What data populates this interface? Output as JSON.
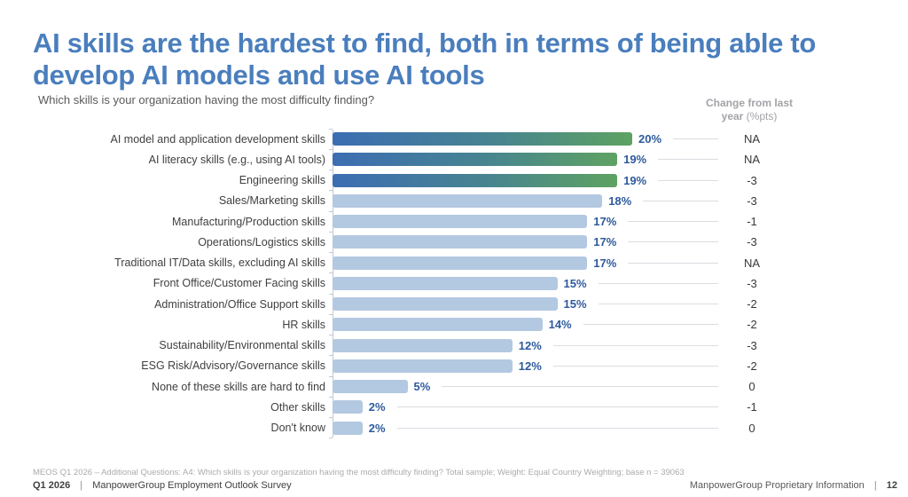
{
  "slide": {
    "title": "AI skills are the hardest to find, both in terms of being able to develop AI models and use AI tools",
    "subtitle": "Which skills is your organization having the most difficulty finding?",
    "change_header": {
      "line1": "Change from last",
      "line2_bold": "year",
      "line2_rest": " (%pts)"
    },
    "footnote": "MEOS Q1 2026 – Additional Questions: A4: Which skills is your organization having the most difficulty finding? Total sample; Weight: Equal Country Weighting; base n = 39063",
    "footer_left": {
      "period": "Q1 2026",
      "separator": "|",
      "text": "ManpowerGroup Employment Outlook Survey"
    },
    "footer_right": {
      "text": "ManpowerGroup Proprietary Information",
      "separator": "|",
      "page_number": "12"
    }
  },
  "chart_data": {
    "type": "bar",
    "orientation": "horizontal",
    "title": "Which skills is your organization having the most difficulty finding?",
    "xlabel": "",
    "ylabel": "",
    "xlim": [
      0,
      20
    ],
    "grid": false,
    "legend": false,
    "leader_lines": true,
    "categories": [
      "AI model and application development skills",
      "AI literacy skills (e.g., using AI tools)",
      "Engineering skills",
      "Sales/Marketing skills",
      "Manufacturing/Production skills",
      "Operations/Logistics skills",
      "Traditional IT/Data skills, excluding AI skills",
      "Front Office/Customer Facing skills",
      "Administration/Office Support skills",
      "HR skills",
      "Sustainability/Environmental skills",
      "ESG Risk/Advisory/Governance skills",
      "None of these skills are hard to find",
      "Other skills",
      "Don't know"
    ],
    "values": [
      20,
      19,
      19,
      18,
      17,
      17,
      17,
      15,
      15,
      14,
      12,
      12,
      5,
      2,
      2
    ],
    "value_labels": [
      "20%",
      "19%",
      "19%",
      "18%",
      "17%",
      "17%",
      "17%",
      "15%",
      "15%",
      "14%",
      "12%",
      "12%",
      "5%",
      "2%",
      "2%"
    ],
    "change_from_last_year": [
      "NA",
      "NA",
      "-3",
      "-3",
      "-1",
      "-3",
      "NA",
      "-3",
      "-2",
      "-2",
      "-3",
      "-2",
      "0",
      "-1",
      "0"
    ],
    "highlighted_rows": 3,
    "colors": {
      "title_blue": "#4A7EBD",
      "bar_default": "#B3C8E1",
      "bar_highlight_gradient_start": "#3C6DB3",
      "bar_highlight_gradient_end": "#5EA262",
      "value_label": "#2E5A9D",
      "change_text": "#383838",
      "axis_line": "#C3C9D1",
      "leader_line": "#D9DDE2"
    }
  }
}
